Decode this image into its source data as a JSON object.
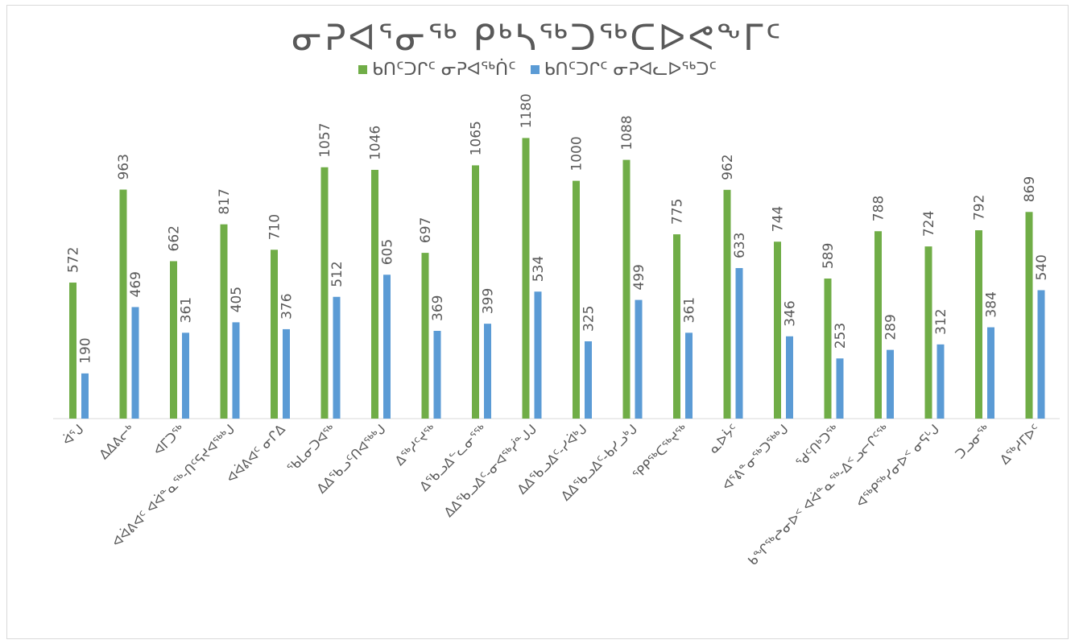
{
  "chart_data": {
    "type": "bar",
    "title": "ᓂᕈᐊᕐᓂᖅ ᑭᒃᓴᖅᑐᖅᑕᐅᕙᖕᒥᑦ",
    "xlabel": "",
    "ylabel": "",
    "ylim": [
      0,
      1300
    ],
    "grid": false,
    "legend_position": "top",
    "categories": [
      "ᐋᕐᒍ",
      "ᐃᐃᕕᓕᒃ",
      "ᐊᒥᑐᖅ",
      "ᐊᐋᕕᐊᑦ ᐊᐋᓐᓇᕐᒃ-ᑎᑦᕋᔪᐊᖅᒃᒍ",
      "ᐊᐋᕕᐊᑦ ᓂᒋᐃ",
      "ᖃᒪᓂᑐᐊᖅ",
      "ᐃᐃᖃᓗᑦᑎᐊᖅᒃᒍ",
      "ᐃᖅᓱᑦᔪᖅ",
      "ᐃᖃᓗᐃᓪᓚᓂᕐᖅ",
      "ᐃᐃᖃᓗᐃᑦ-ᓂᐊᖅᓰᓐᒍᒍ",
      "ᐃᐃᖃᓗᐃᑦ-ᓯᐋᒃᒍ",
      "ᐃᐃᖃᓗᐃᑦ-ᑲᓯᓗᒃᒍ",
      "ᕿᑭᖅᑕᖅᔪᖅ",
      "ᓇᐅᔮᑦ",
      "ᐊᕐᕕᓐᓂᖅᑐᖅᒃᒍ",
      "ᖁᑦᑎᒃᑐᖅ",
      "ᑲᖏᖅᖠᓂᐅᑉ ᐊᐋᓐᓇᕐᒃ-ᐃᑉᓗᓕᒋᑦᖅ",
      "ᐊᖅᑭᖅᓯᓂᐅᑉ ᓂᕋᒡᒍ",
      "ᑐᓗᓂᖅ",
      "ᐃᖅᓱᒥᐅᑦ"
    ],
    "series": [
      {
        "name": "ᑲᑎᑦᑐᒋᑦ ᓂᕈᐊᖅᑏᑦ",
        "color": "#70ad47",
        "values": [
          572,
          963,
          662,
          817,
          710,
          1057,
          1046,
          697,
          1065,
          1180,
          1000,
          1088,
          775,
          962,
          744,
          589,
          788,
          724,
          792,
          869
        ]
      },
      {
        "name": "ᑲᑎᑦᑐᒋᑦ ᓂᕈᐊᓚᐅᖅᑐᑦ",
        "color": "#5b9bd5",
        "values": [
          190,
          469,
          361,
          405,
          376,
          512,
          605,
          369,
          399,
          534,
          325,
          499,
          361,
          633,
          346,
          253,
          289,
          312,
          384,
          540
        ]
      }
    ]
  }
}
